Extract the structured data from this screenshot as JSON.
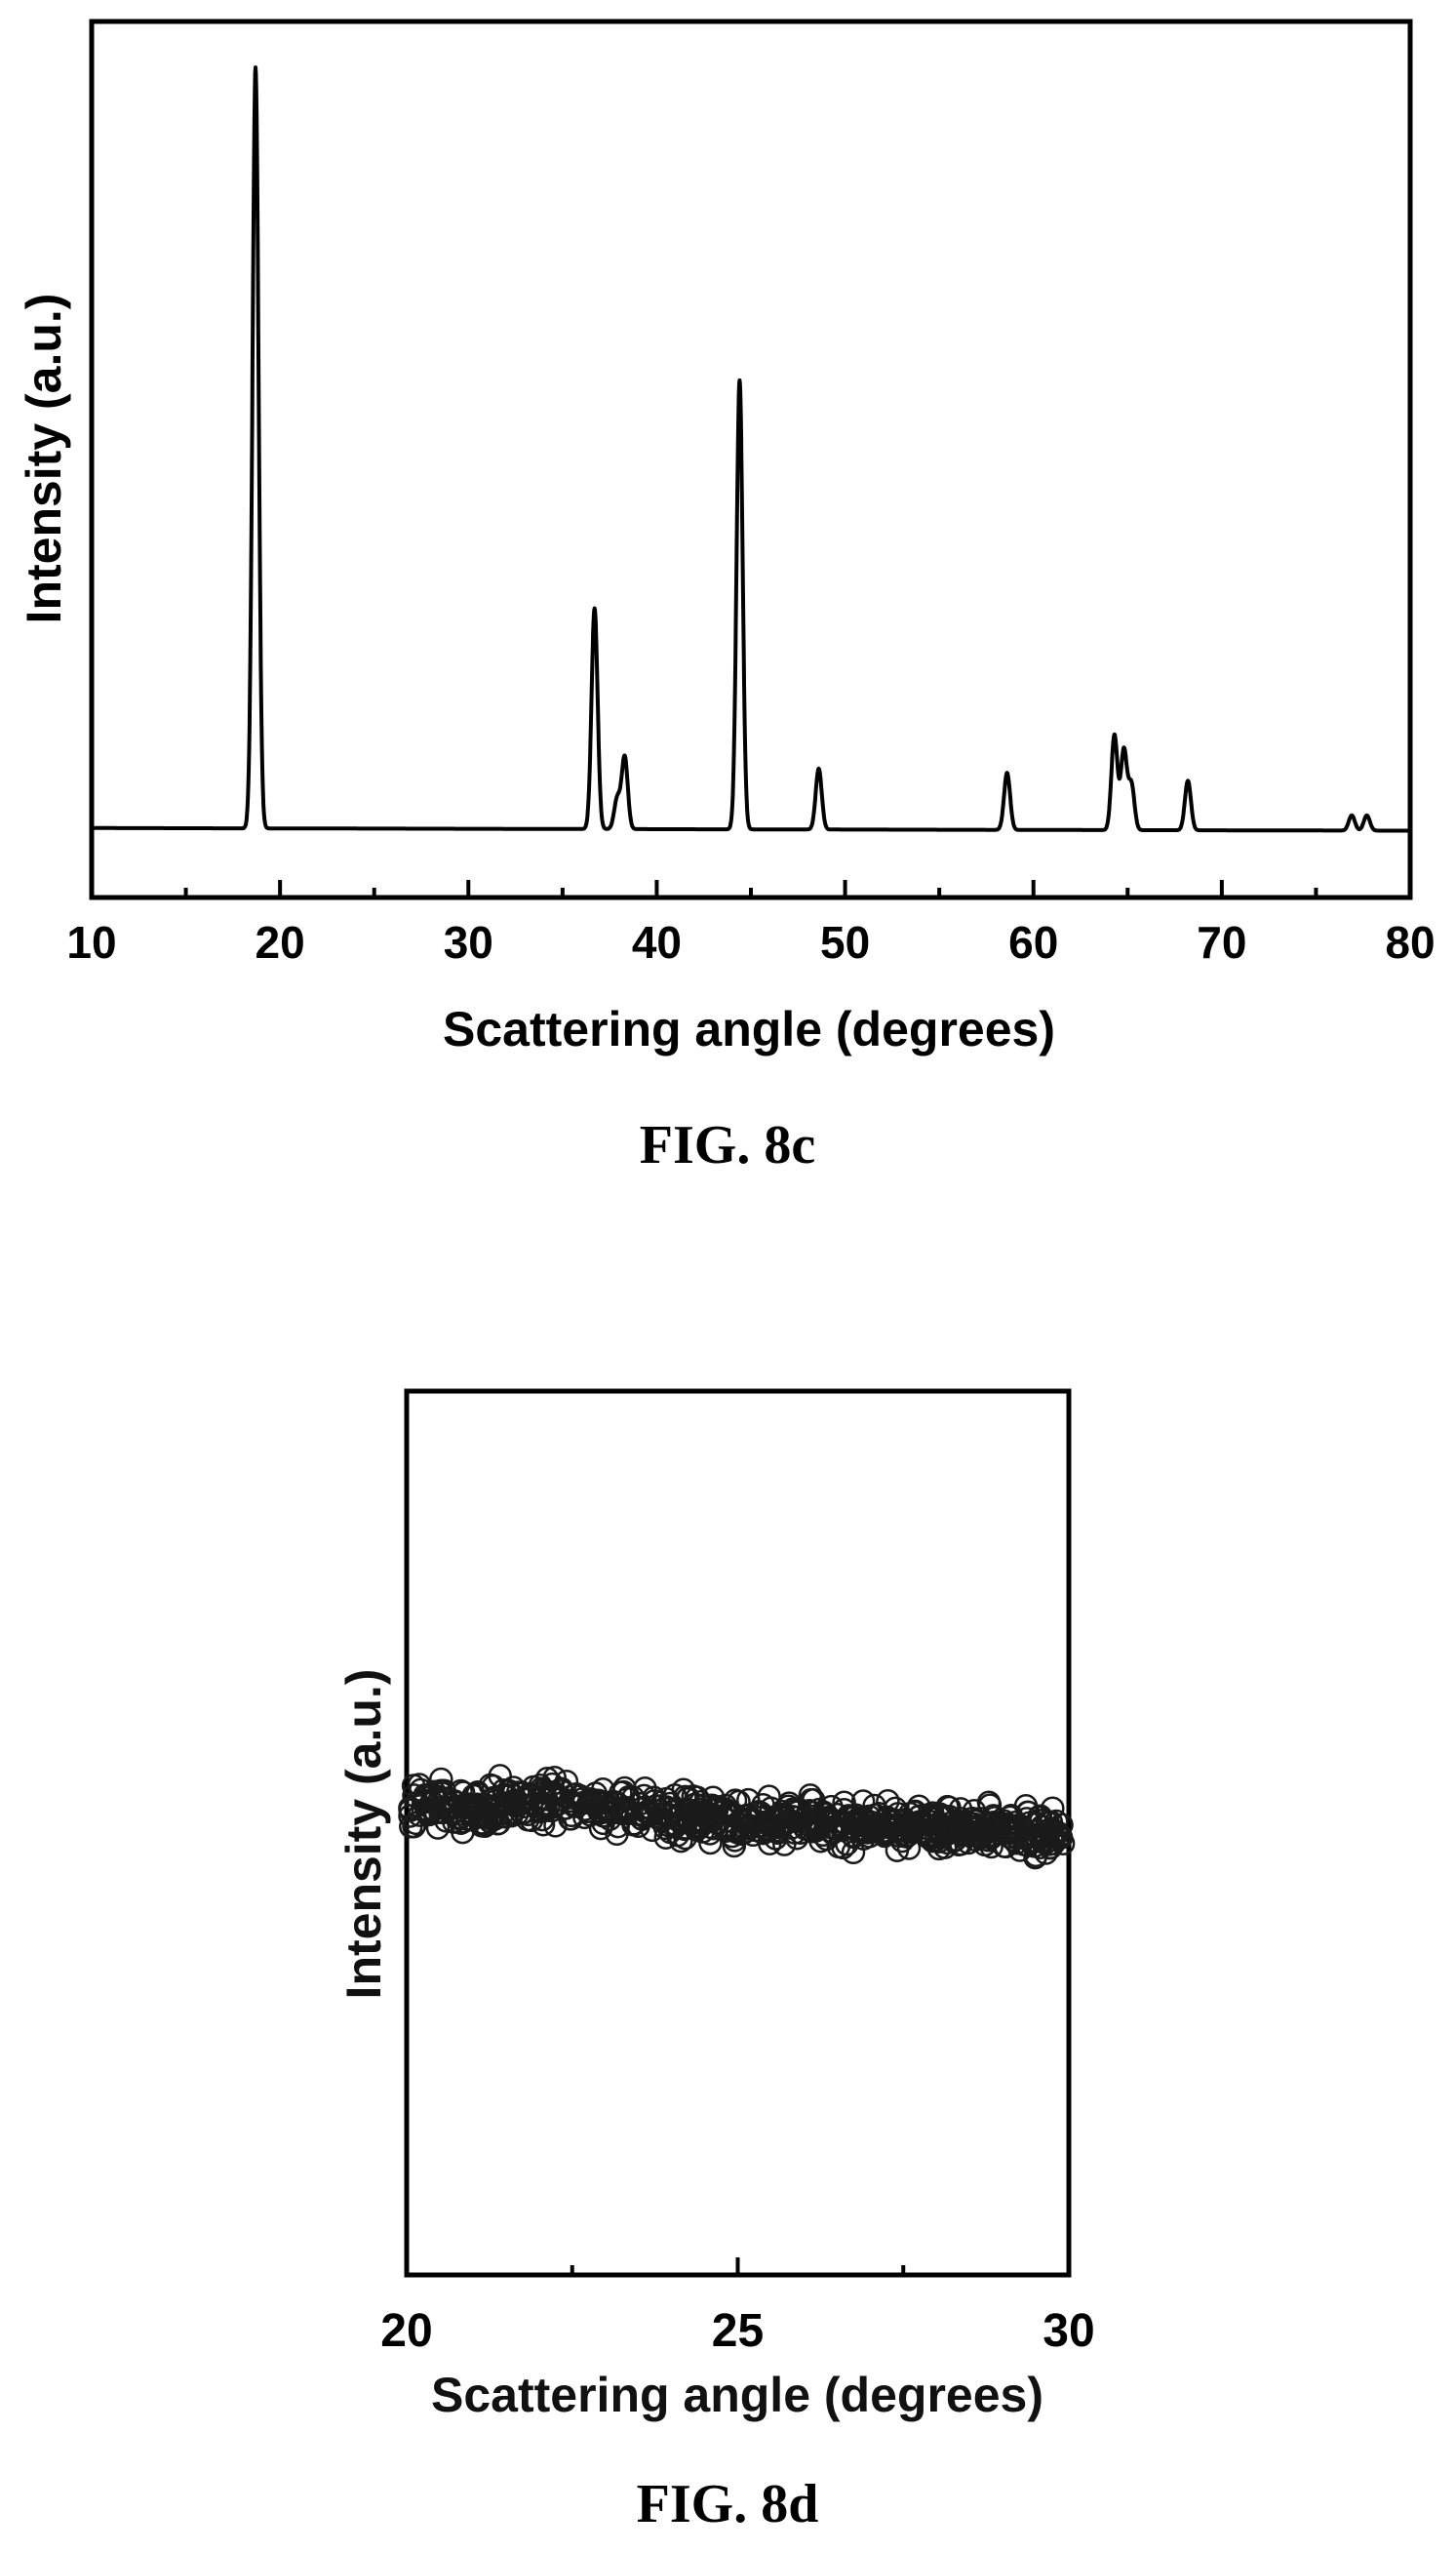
{
  "chart_data": [
    {
      "type": "line",
      "caption": "FIG. 8c",
      "xlabel": "Scattering angle (degrees)",
      "ylabel": "Intensity (a.u.)",
      "xlim": [
        10,
        80
      ],
      "ylim": [
        0,
        100
      ],
      "x_ticks": [
        10,
        20,
        30,
        40,
        50,
        60,
        70,
        80
      ],
      "y_tick_labels": false,
      "grid": false,
      "baseline": 4,
      "peaks": [
        {
          "x": 18.7,
          "y": 100
        },
        {
          "x": 36.7,
          "y": 29
        },
        {
          "x": 37.9,
          "y": 4
        },
        {
          "x": 38.3,
          "y": 9.5
        },
        {
          "x": 44.4,
          "y": 59
        },
        {
          "x": 48.6,
          "y": 8
        },
        {
          "x": 58.6,
          "y": 7.5
        },
        {
          "x": 64.3,
          "y": 12.5
        },
        {
          "x": 64.8,
          "y": 10.5
        },
        {
          "x": 65.2,
          "y": 6
        },
        {
          "x": 68.2,
          "y": 6.5
        },
        {
          "x": 76.9,
          "y": 2
        },
        {
          "x": 77.7,
          "y": 2
        }
      ]
    },
    {
      "type": "scatter",
      "caption": "FIG. 8d",
      "xlabel": "Scattering angle (degrees)",
      "ylabel": "Intensity (a.u.)",
      "xlim": [
        20,
        30
      ],
      "ylim": [
        0,
        100
      ],
      "x_ticks": [
        20,
        25,
        30
      ],
      "y_tick_labels": false,
      "grid": false,
      "marker": "open-circle",
      "trend": [
        {
          "x": 20,
          "y": 53
        },
        {
          "x": 22,
          "y": 53.5
        },
        {
          "x": 24,
          "y": 52
        },
        {
          "x": 26,
          "y": 51
        },
        {
          "x": 28,
          "y": 50.5
        },
        {
          "x": 30,
          "y": 50
        }
      ]
    }
  ]
}
